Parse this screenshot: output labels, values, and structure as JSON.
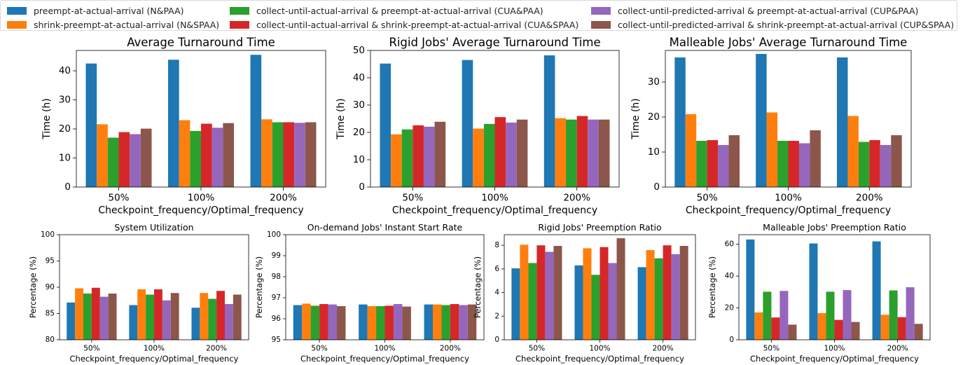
{
  "legend": {
    "items": [
      {
        "label": "preempt-at-actual-arrival (N&PAA)",
        "color": "#1f77b4"
      },
      {
        "label": "shrink-preempt-at-actual-arrival (N&SPAA)",
        "color": "#ff7f0e"
      },
      {
        "label": "collect-until-actual-arrival & preempt-at-actual-arrival (CUA&PAA)",
        "color": "#2ca02c"
      },
      {
        "label": "collect-until-actual-arrival & shrink-preempt-at-actual-arrival (CUA&SPAA)",
        "color": "#d62728"
      },
      {
        "label": "collect-until-predicted-arrival & preempt-at-actual-arrival (CUP&PAA)",
        "color": "#9467bd"
      },
      {
        "label": "collect-until-predicted-arrival & shrink-preempt-at-actual-arrival (CUP&SPAA)",
        "color": "#8c564b"
      }
    ]
  },
  "chart_data": [
    {
      "type": "bar",
      "title": "Average Turnaround Time",
      "xlabel": "Checkpoint_frequency/Optimal_frequency",
      "ylabel": "Time (h)",
      "categories": [
        "50%",
        "100%",
        "200%"
      ],
      "ylim": [
        0,
        47
      ],
      "yticks": [
        0,
        10,
        20,
        30,
        40
      ],
      "series": [
        {
          "name": "preempt-at-actual-arrival (N&PAA)",
          "values": [
            42.5,
            43.8,
            45.5
          ]
        },
        {
          "name": "shrink-preempt-at-actual-arrival (N&SPAA)",
          "values": [
            21.6,
            23.0,
            23.3
          ]
        },
        {
          "name": "collect-until-actual-arrival & preempt-at-actual-arrival (CUA&PAA)",
          "values": [
            17.0,
            19.3,
            22.3
          ]
        },
        {
          "name": "collect-until-actual-arrival & shrink-preempt-at-actual-arrival (CUA&SPAA)",
          "values": [
            18.9,
            21.8,
            22.3
          ]
        },
        {
          "name": "collect-until-predicted-arrival & preempt-at-actual-arrival (CUP&PAA)",
          "values": [
            18.2,
            20.4,
            22.1
          ]
        },
        {
          "name": "collect-until-predicted-arrival & shrink-preempt-at-actual-arrival (CUP&SPAA)",
          "values": [
            20.1,
            22.0,
            22.3
          ]
        }
      ]
    },
    {
      "type": "bar",
      "title": "Rigid Jobs' Average Turnaround Time",
      "xlabel": "Checkpoint_frequency/Optimal_frequency",
      "ylabel": "Time (h)",
      "categories": [
        "50%",
        "100%",
        "200%"
      ],
      "ylim": [
        0,
        50
      ],
      "yticks": [
        0,
        10,
        20,
        30,
        40,
        50
      ],
      "series": [
        {
          "name": "preempt-at-actual-arrival (N&PAA)",
          "values": [
            45.2,
            46.5,
            48.2
          ]
        },
        {
          "name": "shrink-preempt-at-actual-arrival (N&SPAA)",
          "values": [
            19.3,
            21.4,
            25.2
          ]
        },
        {
          "name": "collect-until-actual-arrival & preempt-at-actual-arrival (CUA&PAA)",
          "values": [
            21.1,
            23.1,
            24.7
          ]
        },
        {
          "name": "collect-until-actual-arrival & shrink-preempt-at-actual-arrival (CUA&SPAA)",
          "values": [
            22.6,
            25.6,
            26.0
          ]
        },
        {
          "name": "collect-until-predicted-arrival & preempt-at-actual-arrival (CUP&PAA)",
          "values": [
            22.1,
            23.6,
            24.7
          ]
        },
        {
          "name": "collect-until-predicted-arrival & shrink-preempt-at-actual-arrival (CUP&SPAA)",
          "values": [
            23.9,
            24.7,
            24.7
          ]
        }
      ]
    },
    {
      "type": "bar",
      "title": "Malleable Jobs' Average Turnaround Time",
      "xlabel": "Checkpoint_frequency/Optimal_frequency",
      "ylabel": "Time (h)",
      "categories": [
        "50%",
        "100%",
        "200%"
      ],
      "ylim": [
        0,
        39
      ],
      "yticks": [
        0,
        10,
        20,
        30
      ],
      "series": [
        {
          "name": "preempt-at-actual-arrival (N&PAA)",
          "values": [
            37.0,
            38.0,
            37.0
          ]
        },
        {
          "name": "shrink-preempt-at-actual-arrival (N&SPAA)",
          "values": [
            20.8,
            21.3,
            20.3
          ]
        },
        {
          "name": "collect-until-actual-arrival & preempt-at-actual-arrival (CUA&PAA)",
          "values": [
            13.2,
            13.2,
            12.9
          ]
        },
        {
          "name": "collect-until-actual-arrival & shrink-preempt-at-actual-arrival (CUA&SPAA)",
          "values": [
            13.4,
            13.2,
            13.4
          ]
        },
        {
          "name": "collect-until-predicted-arrival & preempt-at-actual-arrival (CUP&PAA)",
          "values": [
            12.0,
            12.5,
            12.0
          ]
        },
        {
          "name": "collect-until-predicted-arrival & shrink-preempt-at-actual-arrival (CUP&SPAA)",
          "values": [
            14.8,
            16.2,
            14.8
          ]
        }
      ]
    },
    {
      "type": "bar",
      "title": "System Utilization",
      "xlabel": "Checkpoint_frequency/Optimal_frequency",
      "ylabel": "Percentage (%)",
      "categories": [
        "50%",
        "100%",
        "200%"
      ],
      "ylim": [
        80,
        100
      ],
      "yticks": [
        80,
        85,
        90,
        95,
        100
      ],
      "series": [
        {
          "name": "preempt-at-actual-arrival (N&PAA)",
          "values": [
            87.1,
            86.6,
            86.1
          ]
        },
        {
          "name": "shrink-preempt-at-actual-arrival (N&SPAA)",
          "values": [
            89.8,
            89.6,
            88.9
          ]
        },
        {
          "name": "collect-until-actual-arrival & preempt-at-actual-arrival (CUA&PAA)",
          "values": [
            88.8,
            88.6,
            87.8
          ]
        },
        {
          "name": "collect-until-actual-arrival & shrink-preempt-at-actual-arrival (CUA&SPAA)",
          "values": [
            89.9,
            89.6,
            89.3
          ]
        },
        {
          "name": "collect-until-predicted-arrival & preempt-at-actual-arrival (CUP&PAA)",
          "values": [
            88.2,
            87.5,
            86.8
          ]
        },
        {
          "name": "collect-until-predicted-arrival & shrink-preempt-at-actual-arrival (CUP&SPAA)",
          "values": [
            88.8,
            88.9,
            88.6
          ]
        }
      ]
    },
    {
      "type": "bar",
      "title": "On-demand Jobs' Instant Start Rate",
      "xlabel": "Checkpoint_frequency/Optimal_frequency",
      "ylabel": "Percentage (%)",
      "categories": [
        "50%",
        "100%",
        "200%"
      ],
      "ylim": [
        95,
        100
      ],
      "yticks": [
        95,
        96,
        97,
        98,
        99,
        100
      ],
      "series": [
        {
          "name": "preempt-at-actual-arrival (N&PAA)",
          "values": [
            96.65,
            96.68,
            96.68
          ]
        },
        {
          "name": "shrink-preempt-at-actual-arrival (N&SPAA)",
          "values": [
            96.72,
            96.6,
            96.68
          ]
        },
        {
          "name": "collect-until-actual-arrival & preempt-at-actual-arrival (CUA&PAA)",
          "values": [
            96.62,
            96.6,
            96.65
          ]
        },
        {
          "name": "collect-until-actual-arrival & shrink-preempt-at-actual-arrival (CUA&SPAA)",
          "values": [
            96.7,
            96.62,
            96.7
          ]
        },
        {
          "name": "collect-until-predicted-arrival & preempt-at-actual-arrival (CUP&PAA)",
          "values": [
            96.68,
            96.7,
            96.65
          ]
        },
        {
          "name": "collect-until-predicted-arrival & shrink-preempt-at-actual-arrival (CUP&SPAA)",
          "values": [
            96.6,
            96.58,
            96.68
          ]
        }
      ]
    },
    {
      "type": "bar",
      "title": "Rigid Jobs' Preemption Ratio",
      "xlabel": "Checkpoint_frequency/Optimal_frequency",
      "ylabel": "Percentage (%)",
      "categories": [
        "50%",
        "100%",
        "200%"
      ],
      "ylim": [
        0,
        8.9
      ],
      "yticks": [
        0,
        2,
        4,
        6,
        8
      ],
      "series": [
        {
          "name": "preempt-at-actual-arrival (N&PAA)",
          "values": [
            6.05,
            6.3,
            6.15
          ]
        },
        {
          "name": "shrink-preempt-at-actual-arrival (N&SPAA)",
          "values": [
            8.05,
            7.75,
            7.6
          ]
        },
        {
          "name": "collect-until-actual-arrival & preempt-at-actual-arrival (CUA&PAA)",
          "values": [
            6.5,
            5.5,
            6.9
          ]
        },
        {
          "name": "collect-until-actual-arrival & shrink-preempt-at-actual-arrival (CUA&SPAA)",
          "values": [
            8.0,
            7.85,
            8.0
          ]
        },
        {
          "name": "collect-until-predicted-arrival & preempt-at-actual-arrival (CUP&PAA)",
          "values": [
            7.45,
            6.5,
            7.25
          ]
        },
        {
          "name": "collect-until-predicted-arrival & shrink-preempt-at-actual-arrival (CUP&SPAA)",
          "values": [
            7.95,
            8.6,
            7.95
          ]
        }
      ]
    },
    {
      "type": "bar",
      "title": "Malleable Jobs' Preemption Ratio",
      "xlabel": "Checkpoint_frequency/Optimal_frequency",
      "ylabel": "Percentage (%)",
      "categories": [
        "50%",
        "100%",
        "200%"
      ],
      "ylim": [
        0,
        66
      ],
      "yticks": [
        0,
        20,
        40,
        60
      ],
      "series": [
        {
          "name": "preempt-at-actual-arrival (N&PAA)",
          "values": [
            63.0,
            60.5,
            61.8
          ]
        },
        {
          "name": "shrink-preempt-at-actual-arrival (N&SPAA)",
          "values": [
            17.2,
            16.7,
            15.7
          ]
        },
        {
          "name": "collect-until-actual-arrival & preempt-at-actual-arrival (CUA&PAA)",
          "values": [
            30.2,
            30.2,
            31.0
          ]
        },
        {
          "name": "collect-until-actual-arrival & shrink-preempt-at-actual-arrival (CUA&SPAA)",
          "values": [
            14.0,
            12.5,
            14.2
          ]
        },
        {
          "name": "collect-until-predicted-arrival & preempt-at-actual-arrival (CUP&PAA)",
          "values": [
            30.7,
            31.2,
            33.0
          ]
        },
        {
          "name": "collect-until-predicted-arrival & shrink-preempt-at-actual-arrival (CUP&SPAA)",
          "values": [
            9.5,
            11.2,
            10.0
          ]
        }
      ]
    }
  ]
}
